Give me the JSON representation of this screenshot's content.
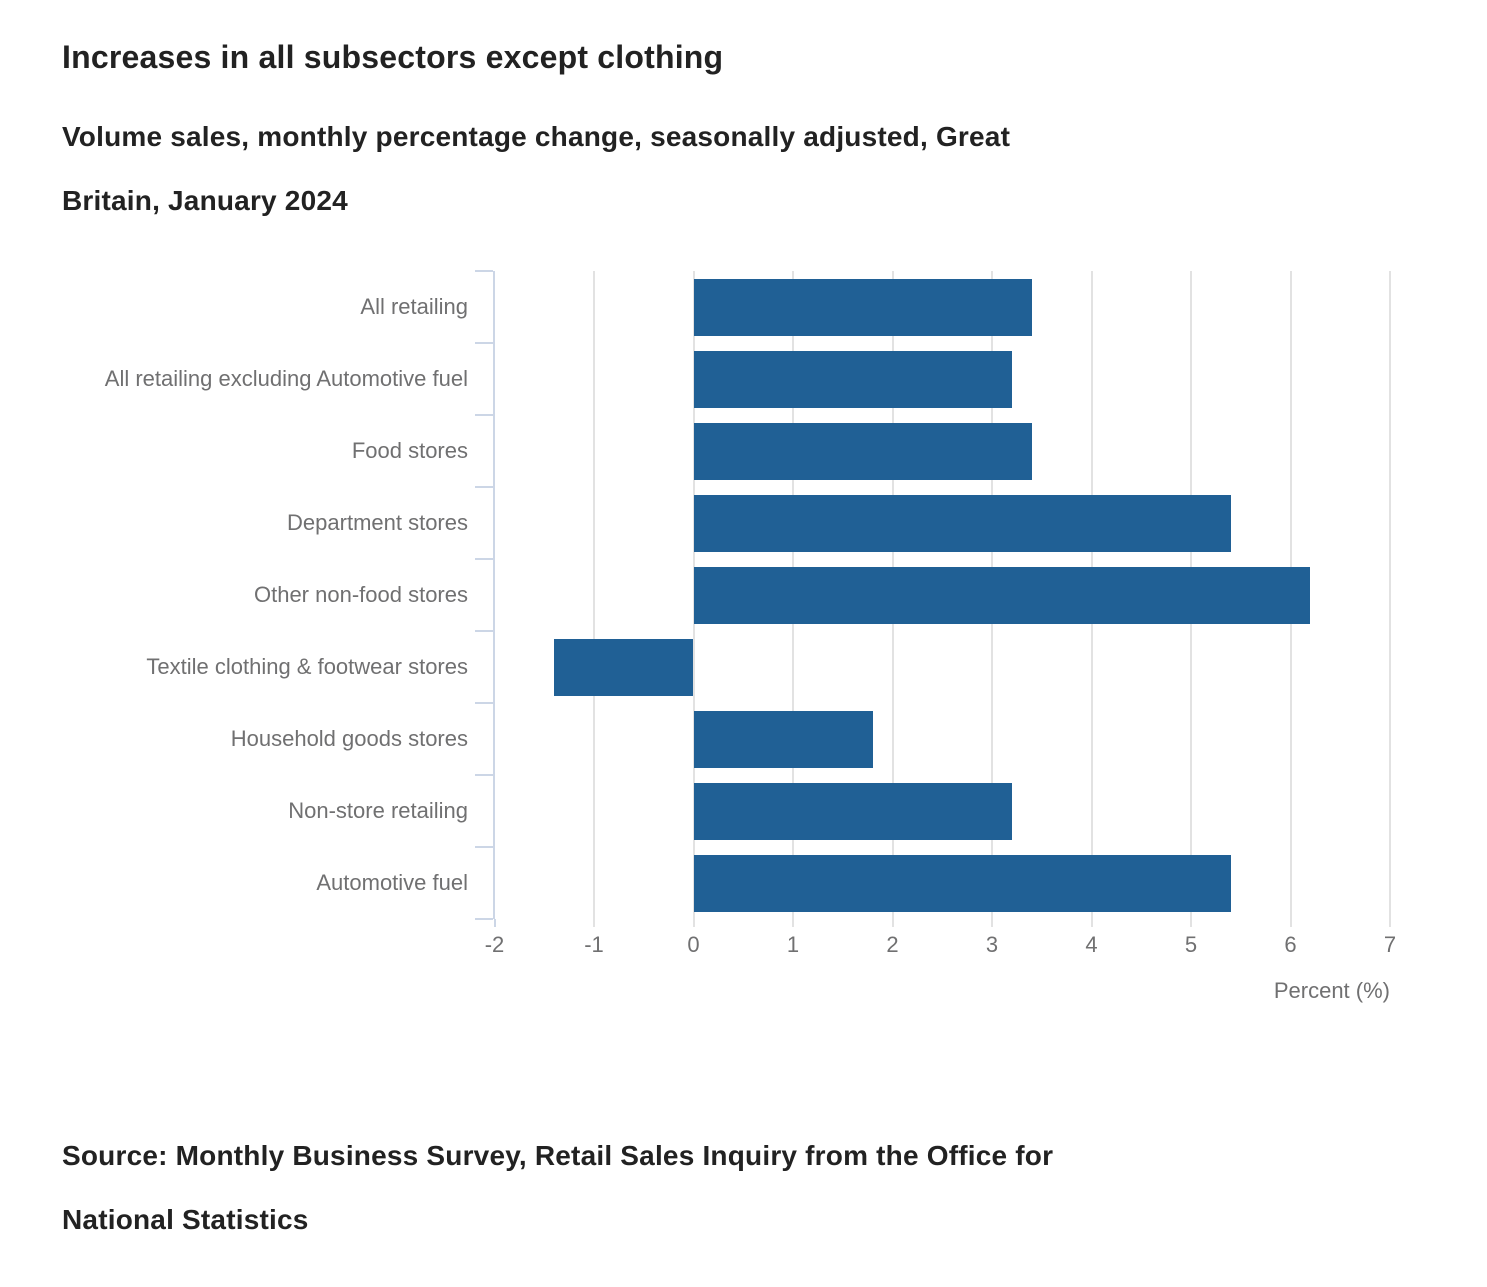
{
  "header": {
    "title": "Increases in all subsectors except clothing",
    "subtitle_line1": "Volume sales, monthly percentage change, seasonally adjusted, Great",
    "subtitle_line2": "Britain, January 2024"
  },
  "footer": {
    "source_line1": "Source: Monthly Business Survey, Retail Sales Inquiry from the Office for",
    "source_line2": "National Statistics"
  },
  "chart_data": {
    "type": "bar",
    "orientation": "horizontal",
    "title": "Increases in all subsectors except clothing",
    "subtitle": "Volume sales, monthly percentage change, seasonally adjusted, Great Britain, January 2024",
    "source": "Source: Monthly Business Survey, Retail Sales Inquiry from the Office for National Statistics",
    "categories": [
      "All retailing",
      "All retailing excluding Automotive fuel",
      "Food stores",
      "Department stores",
      "Other non-food stores",
      "Textile clothing & footwear stores",
      "Household goods stores",
      "Non-store retailing",
      "Automotive fuel"
    ],
    "values": [
      3.4,
      3.2,
      3.4,
      5.4,
      6.2,
      -1.4,
      1.8,
      3.2,
      5.4
    ],
    "xlabel": "Percent (%)",
    "xlim": [
      -2,
      7
    ],
    "xticks": [
      -2,
      -1,
      0,
      1,
      2,
      3,
      4,
      5,
      6,
      7
    ],
    "grid": true,
    "legend_position": "none",
    "colors": {
      "bar": "#206095",
      "gridline": "#e2e2e2",
      "axis_line": "#ccd6e6",
      "tick_label": "#707071",
      "category_label": "#707071",
      "title_text": "#222222"
    }
  }
}
